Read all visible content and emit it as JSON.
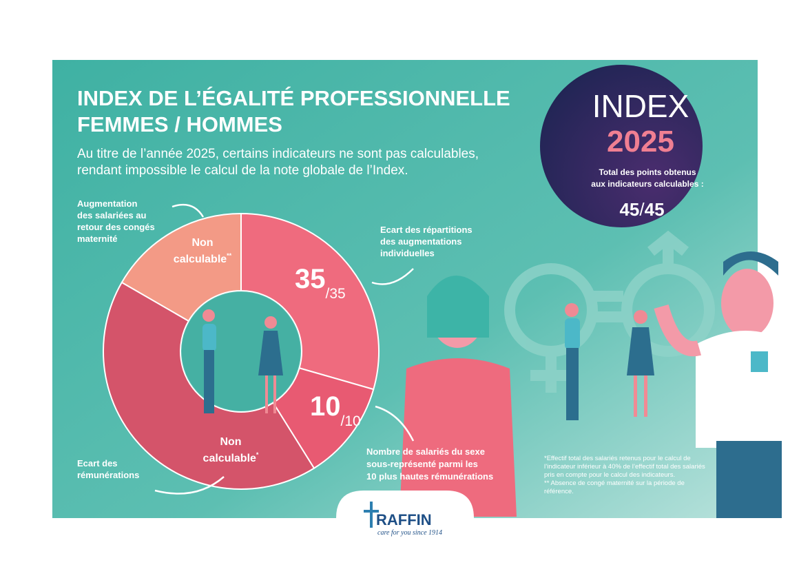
{
  "header": {
    "title_lines": [
      "INDEX DE L’ÉGALITÉ PROFESSIONNELLE",
      "FEMMES / HOMMES"
    ],
    "subtitle_lines": [
      "Au titre de l’année 2025, certains indicateurs ne sont pas calculables,",
      "rendant impossible le calcul de la note globale de l’Index."
    ]
  },
  "badge": {
    "word": "INDEX",
    "year": "2025",
    "caption_lines": [
      "Total des points obtenus",
      "aux indicateurs calculables :"
    ],
    "score": "45",
    "slash": "/",
    "max": "45"
  },
  "donut": {
    "segments": [
      {
        "label": "Augmentation des salariées au retour des congés maternité",
        "label_lines": [
          "Augmentation",
          "des salariées au",
          "retour des congés",
          "maternité"
        ],
        "result_lines": [
          "Non",
          "calculable"
        ],
        "mark": "**"
      },
      {
        "label": "Ecart des répartitions des augmentations individuelles",
        "label_lines": [
          "Ecart des répartitions",
          "des augmentations",
          "individuelles"
        ],
        "score": "35",
        "max": "/35"
      },
      {
        "label": "Nombre de salariés du sexe sous-représenté parmi les 10 plus hautes rémunérations",
        "label_lines": [
          "Nombre de salariés du sexe",
          "sous-représenté parmi les",
          "10 plus hautes rémunérations"
        ],
        "score": "10",
        "max": "/10"
      },
      {
        "label": "Ecart des rémunérations",
        "label_lines": [
          "Ecart des",
          "rémunérations"
        ],
        "result_lines": [
          "Non",
          "calculable"
        ],
        "mark": "*"
      }
    ]
  },
  "footnotes": [
    "*Effectif total des salariés retenus pour le calcul de",
    "l’indicateur inférieur à 40% de l’effectif total des salariés",
    "pris en compte pour le calcul des indicateurs.",
    "** Absence de congé maternité sur la période de",
    "référence."
  ],
  "logo": {
    "name": "RAFFIN",
    "tagline": "care for you since 1914"
  }
}
